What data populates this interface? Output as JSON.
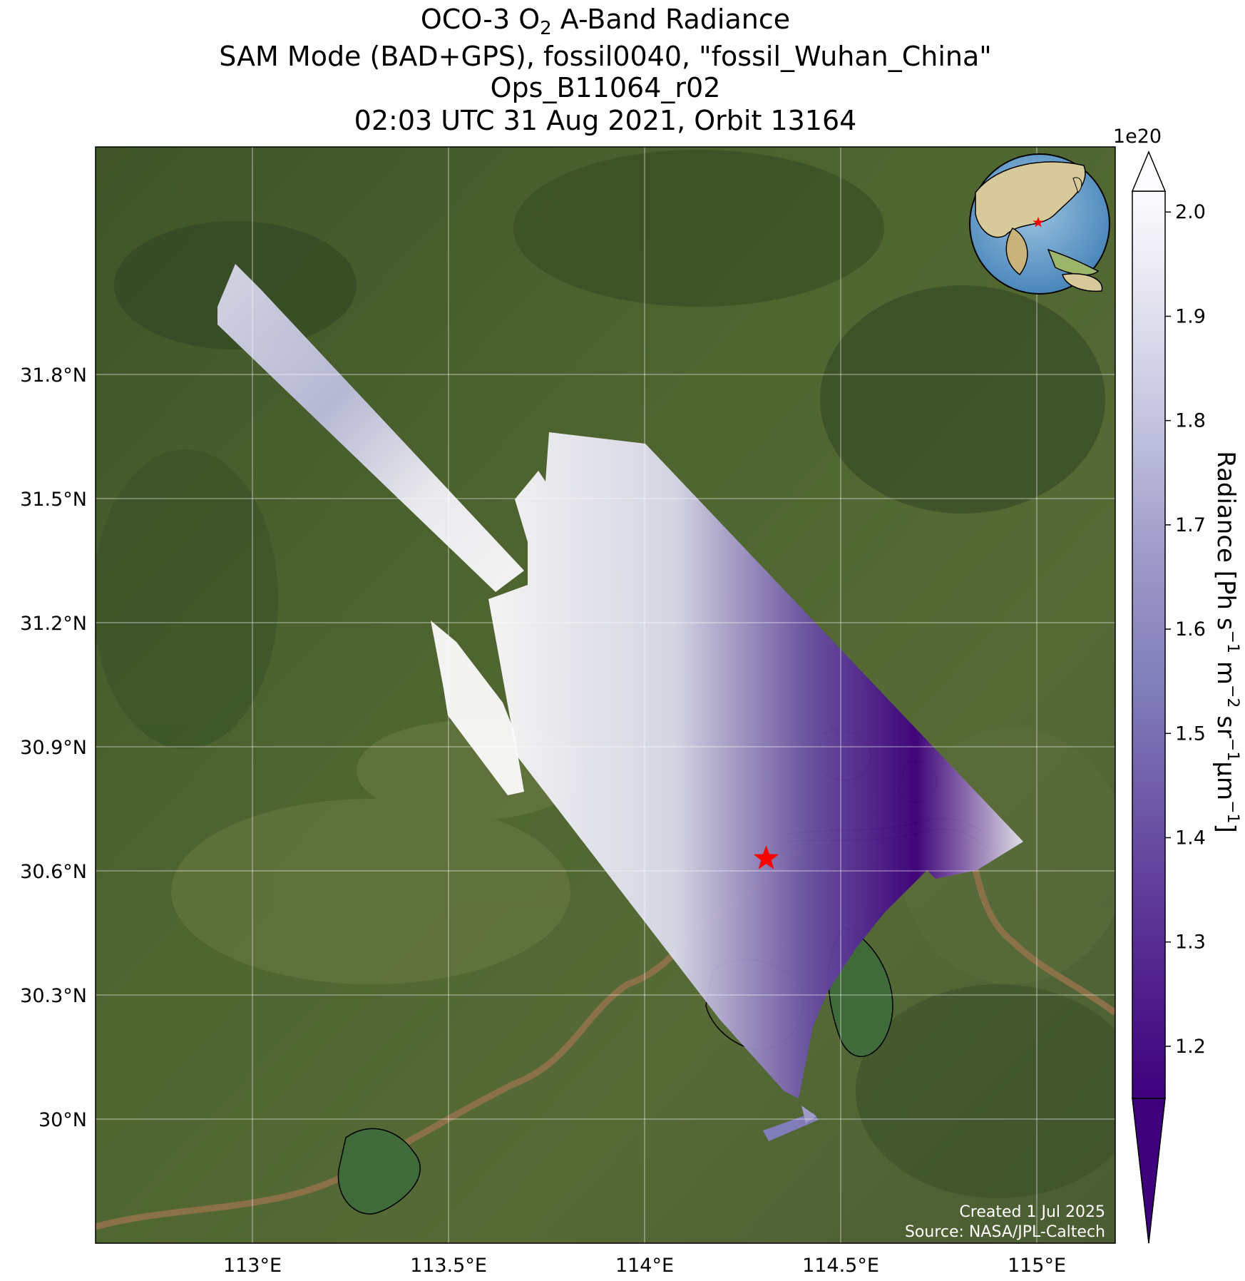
{
  "title": {
    "line1_prefix": "OCO-3 O",
    "line1_sub": "2",
    "line1_suffix": " A-Band Radiance",
    "line2": "SAM Mode (BAD+GPS), fossil0040, \"fossil_Wuhan_China\"",
    "line3": "Ops_B11064_r02",
    "line4": "02:03 UTC 31 Aug 2021, Orbit 13164"
  },
  "map": {
    "lon_range": [
      112.6,
      115.2
    ],
    "lat_range": [
      29.7,
      32.35
    ],
    "lon_ticks": [
      {
        "value": 113.0,
        "label": "113°E"
      },
      {
        "value": 113.5,
        "label": "113.5°E"
      },
      {
        "value": 114.0,
        "label": "114°E"
      },
      {
        "value": 114.5,
        "label": "114.5°E"
      },
      {
        "value": 115.0,
        "label": "115°E"
      }
    ],
    "lat_ticks": [
      {
        "value": 30.0,
        "label": "30°N"
      },
      {
        "value": 30.3,
        "label": "30.3°N"
      },
      {
        "value": 30.6,
        "label": "30.6°N"
      },
      {
        "value": 30.9,
        "label": "30.9°N"
      },
      {
        "value": 31.2,
        "label": "31.2°N"
      },
      {
        "value": 31.5,
        "label": "31.5°N"
      },
      {
        "value": 31.8,
        "label": "31.8°N"
      }
    ],
    "target": {
      "lon": 114.31,
      "lat": 30.63,
      "color": "#ff0000"
    },
    "background_color": "#4a5f2e",
    "credit_line1": "Created 1 Jul 2025",
    "credit_line2": "Source: NASA/JPL-Caltech"
  },
  "colorbar": {
    "label_prefix": "Radiance [Ph s",
    "label_exp1": "−1",
    "label_mid1": " m",
    "label_exp2": "−2",
    "label_mid2": " sr",
    "label_exp3": "−1",
    "label_mid3": "μm",
    "label_exp4": "−1",
    "label_suffix": "]",
    "multiplier": "1e20",
    "range": [
      1.15,
      2.02
    ],
    "colormap": "Purples_r",
    "color_low": "#3f007d",
    "color_high": "#fcfbfd",
    "ticks": [
      {
        "value": 1.2,
        "label": "1.2"
      },
      {
        "value": 1.3,
        "label": "1.3"
      },
      {
        "value": 1.4,
        "label": "1.4"
      },
      {
        "value": 1.5,
        "label": "1.5"
      },
      {
        "value": 1.6,
        "label": "1.6"
      },
      {
        "value": 1.7,
        "label": "1.7"
      },
      {
        "value": 1.8,
        "label": "1.8"
      },
      {
        "value": 1.9,
        "label": "1.9"
      },
      {
        "value": 2.0,
        "label": "2.0"
      }
    ],
    "extend": "both"
  },
  "inset_globe": {
    "center_lon": 110,
    "center_lat": 20
  }
}
